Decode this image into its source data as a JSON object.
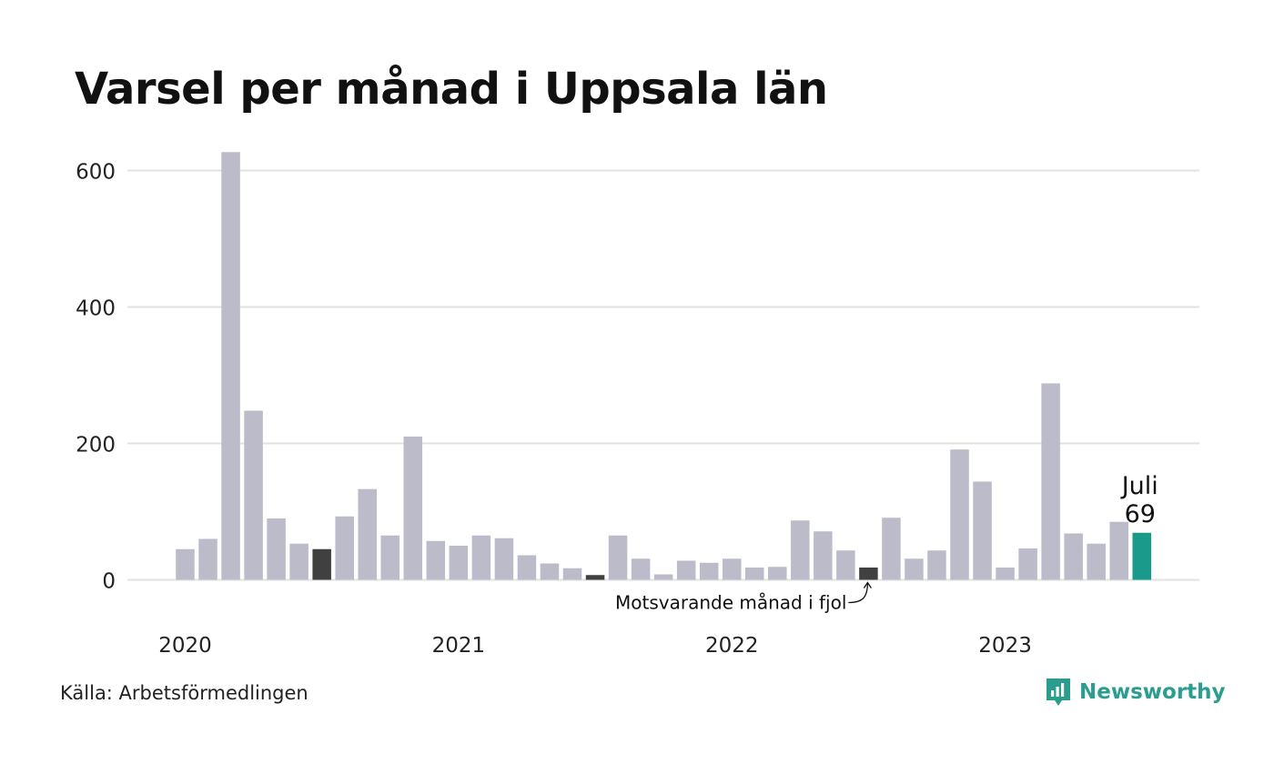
{
  "colors": {
    "bar": "#bcbbc9",
    "previous_year": "#404040",
    "current": "#1a9a8a",
    "grid": "#e2e2e2",
    "brand": "#2a9d8f"
  },
  "source": "Källa: Arbetsförmedlingen",
  "brand": {
    "name": "Newsworthy",
    "icon": "newsworthy-logo-icon"
  },
  "chart_data": {
    "type": "bar",
    "title": "Varsel per månad i Uppsala län",
    "xlabel": "",
    "ylabel": "",
    "ylim": [
      0,
      640
    ],
    "yticks": [
      0,
      200,
      400,
      600
    ],
    "grid": true,
    "start_month": "2020-01",
    "year_labels": [
      "2020",
      "2021",
      "2022",
      "2023"
    ],
    "series": [
      {
        "values": [
          45,
          60,
          627,
          248,
          90,
          53,
          45,
          93,
          133,
          65,
          210,
          57,
          50,
          65,
          61,
          36,
          24,
          17,
          7,
          65,
          31,
          8,
          28,
          25,
          31,
          18,
          19,
          87,
          71,
          43,
          18,
          91,
          31,
          43,
          191,
          144,
          18,
          46,
          288,
          68,
          53,
          85,
          69
        ]
      }
    ],
    "highlight_previous_year": [
      6,
      18,
      30
    ],
    "highlight_current": 42,
    "annotations": {
      "current_label": "Juli",
      "current_value": "69",
      "previous_year_label": "Motsvarande månad i fjol"
    }
  }
}
